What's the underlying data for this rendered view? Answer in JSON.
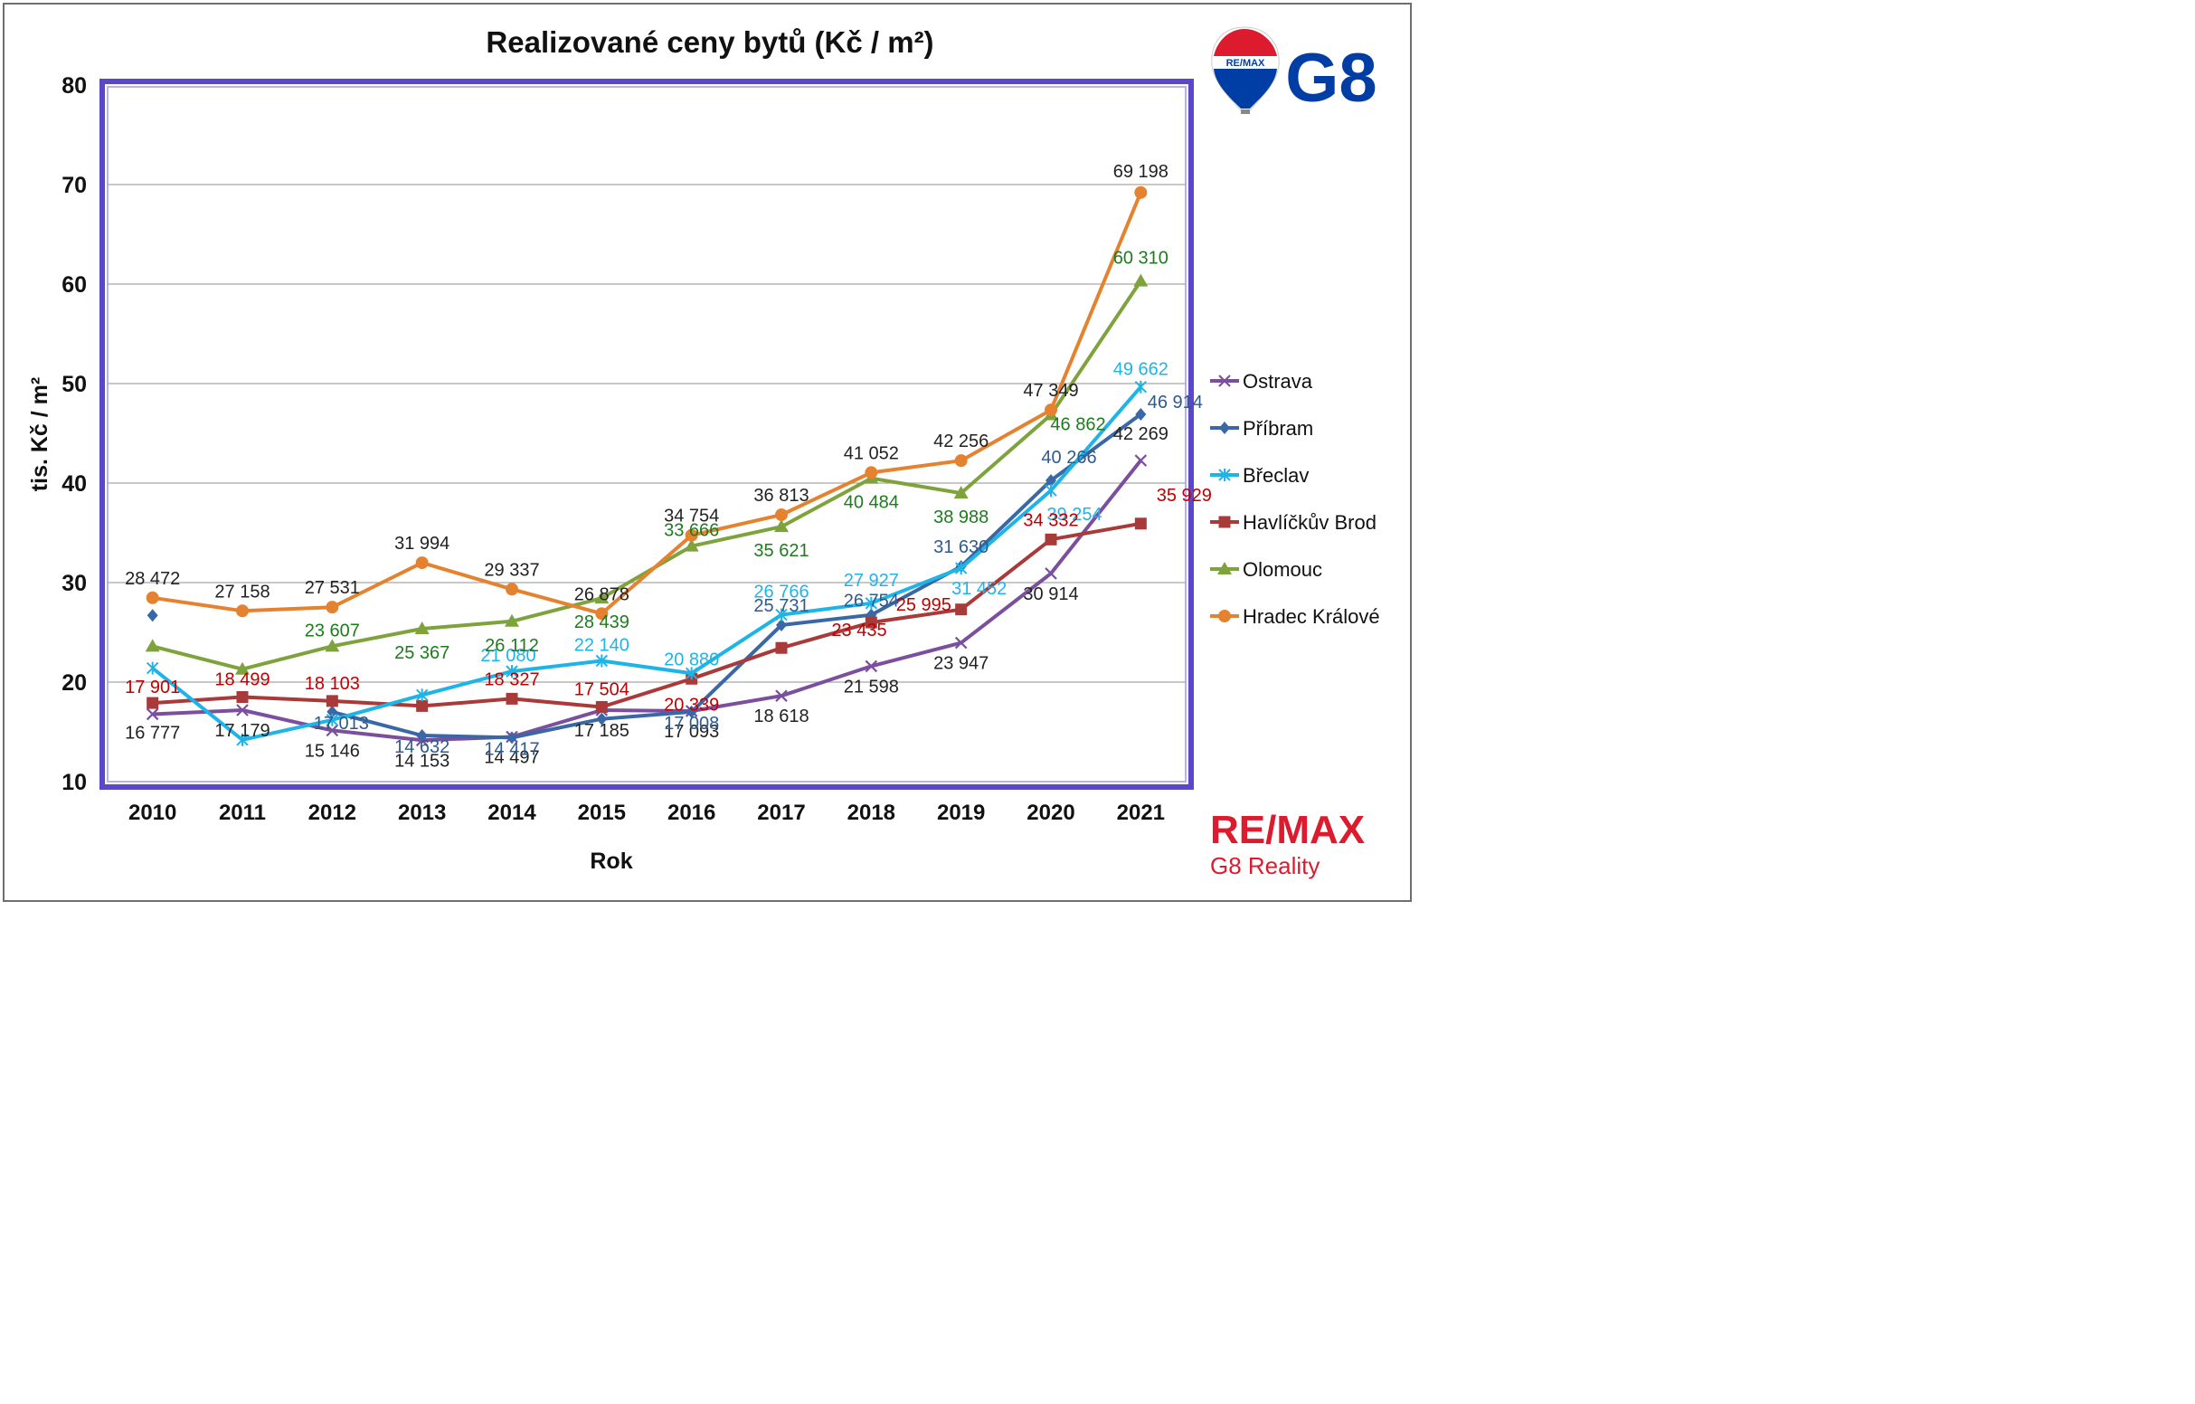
{
  "chart_data": {
    "type": "line",
    "title": "Realizované ceny bytů (Kč / m²)",
    "xlabel": "Rok",
    "ylabel": "tis. Kč / m²",
    "x": [
      "2010",
      "2011",
      "2012",
      "2013",
      "2014",
      "2015",
      "2016",
      "2017",
      "2018",
      "2019",
      "2020",
      "2021"
    ],
    "ylim": [
      10,
      80
    ],
    "yticks": [
      10,
      20,
      30,
      40,
      50,
      60,
      70,
      80
    ],
    "grid": true,
    "legend_position": "right",
    "series": [
      {
        "name": "Ostrava",
        "color": "#7B4F9E",
        "marker": "x",
        "values": [
          16.777,
          17.179,
          15.146,
          14.153,
          14.497,
          17.185,
          17.093,
          18.618,
          21.598,
          23.947,
          30.914,
          42.269
        ],
        "labels": [
          "16 777",
          "17 179",
          "15 146",
          "14 153",
          "14 497",
          "17 185",
          "17 093",
          "18 618",
          "21 598",
          "23 947",
          "30 914",
          "42 269"
        ],
        "label_color": "#222222"
      },
      {
        "name": "Příbram",
        "color": "#3A68A6",
        "marker": "diamond",
        "values": [
          26.7,
          null,
          17.013,
          14.632,
          14.417,
          16.3,
          17.008,
          25.731,
          26.754,
          31.63,
          40.266,
          46.914
        ],
        "labels": [
          "",
          "",
          "17 013",
          "14 632",
          "14 417",
          "",
          "17 008",
          "25 731",
          "26 754",
          "31 630",
          "40 266",
          "46 914"
        ],
        "label_color": "#2F5A8E"
      },
      {
        "name": "Břeclav",
        "color": "#1EB4E8",
        "marker": "star",
        "values": [
          21.4,
          14.2,
          16.2,
          18.7,
          21.08,
          22.14,
          20.88,
          26.766,
          27.927,
          31.452,
          39.254,
          49.662
        ],
        "labels": [
          "",
          "",
          "",
          "",
          "21 080",
          "22 140",
          "20 880",
          "26 766",
          "27 927",
          "31 452",
          "39 254",
          "49 662"
        ],
        "label_color": "#1EB4E8"
      },
      {
        "name": "Havlíčkův Brod",
        "color": "#A83A3A",
        "marker": "square",
        "values": [
          17.901,
          18.499,
          18.103,
          17.6,
          18.327,
          17.504,
          20.339,
          23.435,
          25.995,
          27.3,
          34.332,
          35.929
        ],
        "labels": [
          "17 901",
          "18 499",
          "18 103",
          "",
          "18 327",
          "17 504",
          "20 339",
          "23 435",
          "25 995",
          "",
          "34 332",
          "35 929"
        ],
        "label_color": "#C00000"
      },
      {
        "name": "Olomouc",
        "color": "#7FA33C",
        "marker": "triangle",
        "values": [
          23.6,
          21.3,
          23.607,
          25.367,
          26.112,
          28.439,
          33.666,
          35.621,
          40.484,
          38.988,
          46.862,
          60.31
        ],
        "labels": [
          "",
          "",
          "23 607",
          "25 367",
          "26 112",
          "28 439",
          "33 666",
          "35 621",
          "40 484",
          "38 988",
          "46 862",
          "60 310"
        ],
        "label_color": "#1E7B1E"
      },
      {
        "name": "Hradec Králové",
        "color": "#E5822F",
        "marker": "circle",
        "values": [
          28.472,
          27.158,
          27.531,
          31.994,
          29.337,
          26.878,
          34.754,
          36.813,
          41.052,
          42.256,
          47.349,
          69.198
        ],
        "labels": [
          "28 472",
          "27 158",
          "27 531",
          "31 994",
          "29 337",
          "26 878",
          "34 754",
          "36 813",
          "41 052",
          "42 256",
          "47 349",
          "69 198"
        ],
        "label_color": "#222222"
      }
    ]
  },
  "branding": {
    "balloon_logo_text": "RE/MAX",
    "top_logo_text": "G8",
    "bottom_logo_main": "RE/MAX",
    "bottom_logo_sub": "G8 Reality",
    "remax_red": "#DC1C2E",
    "remax_blue": "#003DA5"
  }
}
